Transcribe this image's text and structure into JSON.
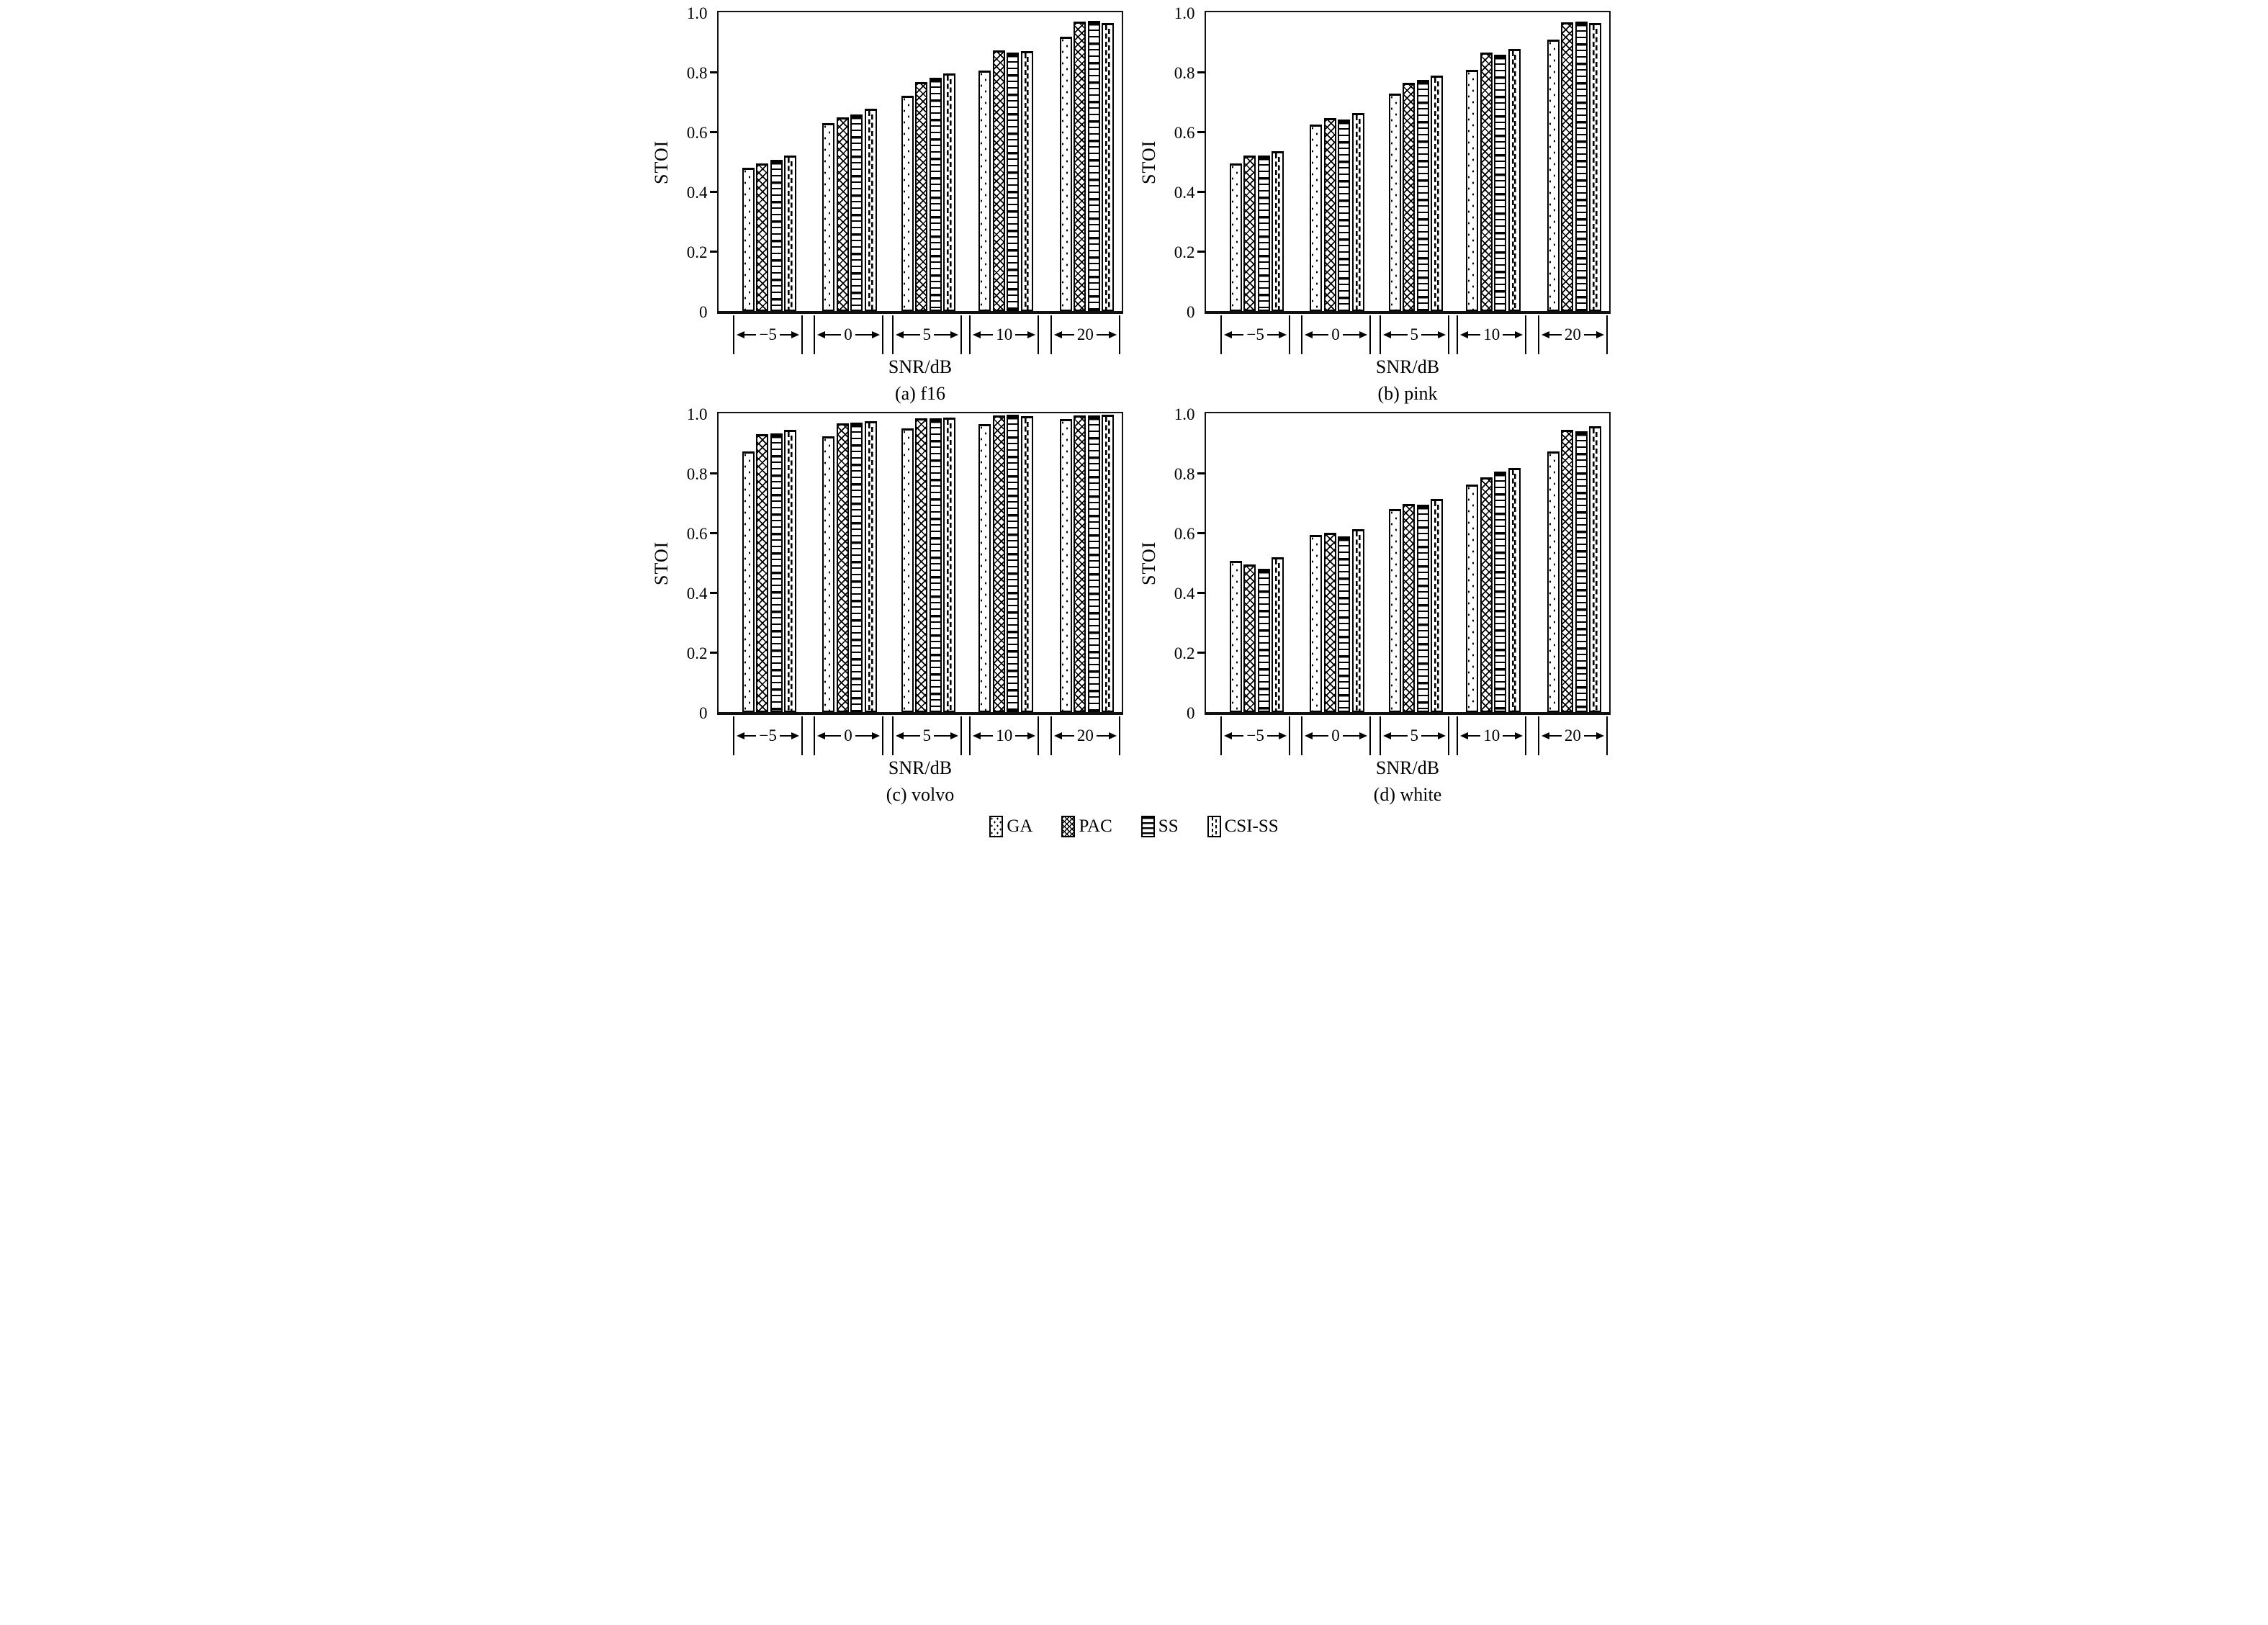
{
  "colors": {
    "ink": "#000000",
    "background": "#ffffff"
  },
  "legend": [
    {
      "label": "GA",
      "pattern": "dots"
    },
    {
      "label": "PAC",
      "pattern": "cross"
    },
    {
      "label": "SS",
      "pattern": "hlines"
    },
    {
      "label": "CSI-SS",
      "pattern": "vdash"
    }
  ],
  "chart_data": [
    {
      "type": "bar",
      "caption": "(a) f16",
      "xlabel": "SNR/dB",
      "ylabel": "STOI",
      "categories": [
        "−5",
        "0",
        "5",
        "10",
        "20"
      ],
      "yticks": [
        "1.0",
        "0.8",
        "0.6",
        "0.4",
        "0.2",
        "0"
      ],
      "ylim": [
        0,
        1.0
      ],
      "grid": false,
      "legend_position": "bottom-shared",
      "series": [
        {
          "name": "GA",
          "values": [
            0.48,
            0.63,
            0.72,
            0.805,
            0.917
          ]
        },
        {
          "name": "PAC",
          "values": [
            0.495,
            0.648,
            0.766,
            0.872,
            0.968
          ]
        },
        {
          "name": "SS",
          "values": [
            0.505,
            0.659,
            0.781,
            0.864,
            0.97
          ]
        },
        {
          "name": "CSI-SS",
          "values": [
            0.52,
            0.678,
            0.796,
            0.869,
            0.963
          ]
        }
      ]
    },
    {
      "type": "bar",
      "caption": "(b) pink",
      "xlabel": "SNR/dB",
      "ylabel": "STOI",
      "categories": [
        "−5",
        "0",
        "5",
        "10",
        "20"
      ],
      "yticks": [
        "1.0",
        "0.8",
        "0.6",
        "0.4",
        "0.2",
        "0"
      ],
      "ylim": [
        0,
        1.0
      ],
      "grid": false,
      "legend_position": "bottom-shared",
      "series": [
        {
          "name": "GA",
          "values": [
            0.493,
            0.625,
            0.728,
            0.807,
            0.908
          ]
        },
        {
          "name": "PAC",
          "values": [
            0.521,
            0.647,
            0.763,
            0.864,
            0.967
          ]
        },
        {
          "name": "SS",
          "values": [
            0.521,
            0.641,
            0.774,
            0.858,
            0.969
          ]
        },
        {
          "name": "CSI-SS",
          "values": [
            0.535,
            0.663,
            0.788,
            0.878,
            0.964
          ]
        }
      ]
    },
    {
      "type": "bar",
      "caption": "(c) volvo",
      "xlabel": "SNR/dB",
      "ylabel": "STOI",
      "categories": [
        "−5",
        "0",
        "5",
        "10",
        "20"
      ],
      "yticks": [
        "1.0",
        "0.8",
        "0.6",
        "0.4",
        "0.2",
        "0"
      ],
      "ylim": [
        0,
        1.0
      ],
      "grid": false,
      "legend_position": "bottom-shared",
      "series": [
        {
          "name": "GA",
          "values": [
            0.872,
            0.923,
            0.95,
            0.964,
            0.981
          ]
        },
        {
          "name": "PAC",
          "values": [
            0.931,
            0.967,
            0.982,
            0.994,
            0.993
          ]
        },
        {
          "name": "SS",
          "values": [
            0.932,
            0.968,
            0.982,
            0.995,
            0.994
          ]
        },
        {
          "name": "CSI-SS",
          "values": [
            0.945,
            0.974,
            0.985,
            0.991,
            0.995
          ]
        }
      ]
    },
    {
      "type": "bar",
      "caption": "(d) white",
      "xlabel": "SNR/dB",
      "ylabel": "STOI",
      "categories": [
        "−5",
        "0",
        "5",
        "10",
        "20"
      ],
      "yticks": [
        "1.0",
        "0.8",
        "0.6",
        "0.4",
        "0.2",
        "0"
      ],
      "ylim": [
        0,
        1.0
      ],
      "grid": false,
      "legend_position": "bottom-shared",
      "series": [
        {
          "name": "GA",
          "values": [
            0.507,
            0.593,
            0.679,
            0.762,
            0.873
          ]
        },
        {
          "name": "PAC",
          "values": [
            0.494,
            0.6,
            0.697,
            0.786,
            0.945
          ]
        },
        {
          "name": "SS",
          "values": [
            0.479,
            0.589,
            0.694,
            0.806,
            0.94
          ]
        },
        {
          "name": "CSI-SS",
          "values": [
            0.518,
            0.613,
            0.714,
            0.818,
            0.956
          ]
        }
      ]
    }
  ]
}
